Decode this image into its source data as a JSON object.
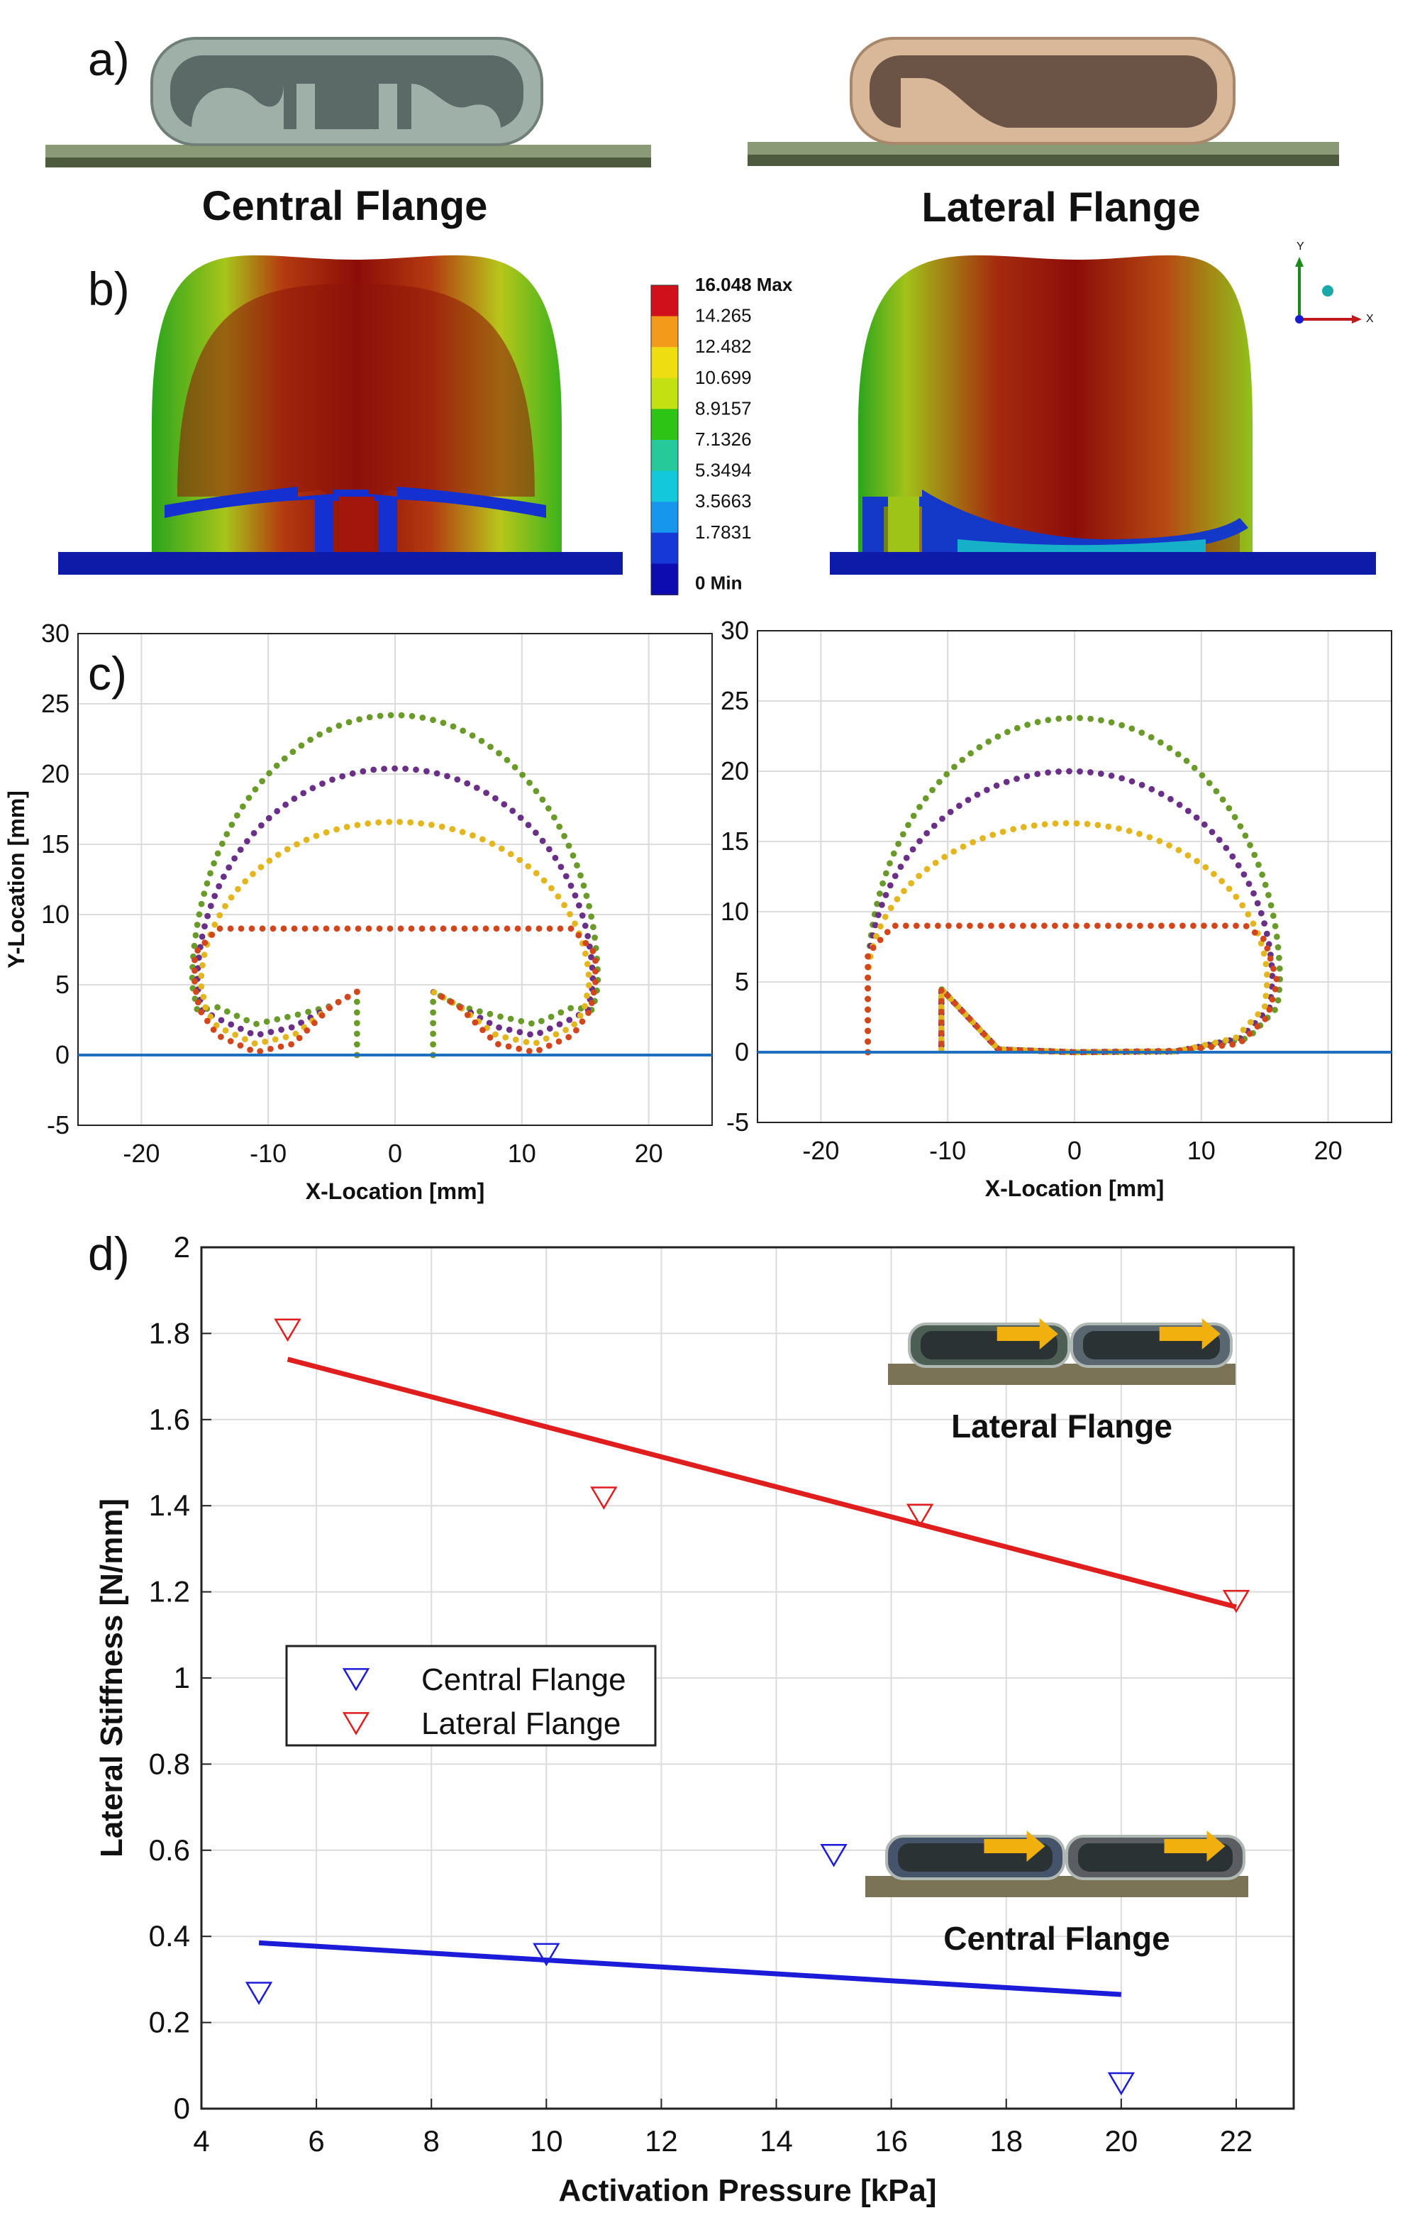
{
  "panel_labels": {
    "a": "a)",
    "b": "b)",
    "c": "c)",
    "d": "d)"
  },
  "panel_a": {
    "central_title": "Central Flange",
    "lateral_title": "Lateral Flange"
  },
  "panel_b": {
    "colorbar": {
      "labels": [
        "16.048 Max",
        "14.265",
        "12.482",
        "10.699",
        "8.9157",
        "7.1326",
        "5.3494",
        "3.5663",
        "1.7831",
        "0 Min"
      ],
      "colors": [
        "#d0101a",
        "#f39a1a",
        "#eedd10",
        "#c2e012",
        "#2ec415",
        "#25c99a",
        "#14c8dc",
        "#1696ec",
        "#1538d6",
        "#0c0cb0"
      ]
    },
    "triad": {
      "y_label": "Y",
      "x_label": "X"
    }
  },
  "chart_data": [
    {
      "type": "line",
      "panel": "c-left",
      "xlabel": "X-Location [mm]",
      "ylabel": "Y-Location [mm]",
      "xlim": [
        -25,
        25
      ],
      "ylim": [
        -5,
        30
      ],
      "xticks": [
        "-20",
        "-10",
        "0",
        "10",
        "20"
      ],
      "yticks": [
        "30",
        "25",
        "20",
        "15",
        "10",
        "5",
        "0",
        "-5"
      ],
      "grid": true,
      "series": [
        {
          "color": "#6a9a2a",
          "apex_y": 24.2,
          "half_width": 16.0,
          "wall_y": 5
        },
        {
          "color": "#6a2f86",
          "apex_y": 20.4,
          "half_width": 15.6,
          "wall_y": 5
        },
        {
          "color": "#e3b51e",
          "apex_y": 16.6,
          "half_width": 15.3,
          "wall_y": 5
        },
        {
          "color": "#d2461d",
          "apex_y": 9.0,
          "half_width": 15.8,
          "wall_y": 5
        },
        {
          "color": "#1f6fbf",
          "baseline_y": 0
        }
      ]
    },
    {
      "type": "line",
      "panel": "c-right",
      "xlabel": "X-Location [mm]",
      "xlim": [
        -25,
        25
      ],
      "ylim": [
        -5,
        30
      ],
      "xticks": [
        "-20",
        "-10",
        "0",
        "10",
        "20"
      ],
      "yticks": [
        "30",
        "25",
        "20",
        "15",
        "10",
        "5",
        "0",
        "-5"
      ],
      "grid": true,
      "series": [
        {
          "color": "#6a9a2a",
          "apex_y": 23.8
        },
        {
          "color": "#6a2f86",
          "apex_y": 20.0
        },
        {
          "color": "#e3b51e",
          "apex_y": 16.3
        },
        {
          "color": "#d2461d",
          "apex_y": 9.0
        },
        {
          "color": "#1f6fbf",
          "baseline_y": 0
        }
      ]
    },
    {
      "type": "scatter",
      "panel": "d",
      "xlabel": "Activation Pressure [kPa]",
      "ylabel": "Lateral Stiffness [N/mm]",
      "xlim": [
        4,
        23
      ],
      "ylim": [
        0,
        2
      ],
      "xticks": [
        "4",
        "6",
        "8",
        "10",
        "12",
        "14",
        "16",
        "18",
        "20",
        "22"
      ],
      "yticks": [
        "2",
        "1.8",
        "1.6",
        "1.4",
        "1.2",
        "1",
        "0.8",
        "0.6",
        "0.4",
        "0.2",
        "0"
      ],
      "grid": true,
      "legend_position": "center-left",
      "series": [
        {
          "name": "Central Flange",
          "color": "#1c1cd8",
          "x": [
            5,
            10,
            15,
            20
          ],
          "y": [
            0.27,
            0.36,
            0.59,
            0.06
          ],
          "fit": {
            "x": [
              5,
              20
            ],
            "y": [
              0.385,
              0.265
            ]
          }
        },
        {
          "name": "Lateral Flange",
          "color": "#e01e1e",
          "x": [
            5.5,
            11,
            16.5,
            22
          ],
          "y": [
            1.81,
            1.42,
            1.38,
            1.18
          ],
          "fit": {
            "x": [
              5.5,
              22
            ],
            "y": [
              1.74,
              1.165
            ]
          }
        }
      ],
      "insets": [
        {
          "label": "Lateral Flange"
        },
        {
          "label": "Central Flange"
        }
      ]
    }
  ]
}
